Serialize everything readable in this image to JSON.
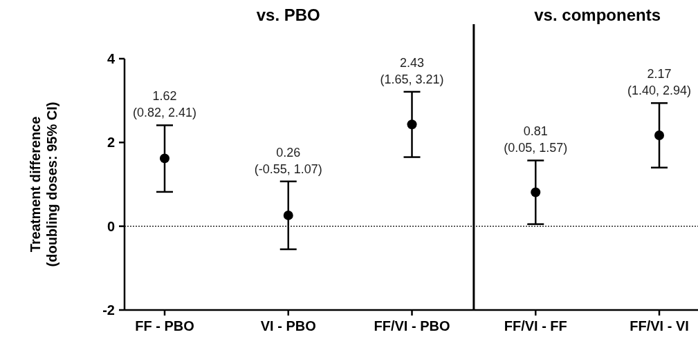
{
  "chart_data": {
    "type": "scatter",
    "ylabel": "Treatment difference\n(doubling doses: 95% CI)",
    "categories": [
      "FF - PBO",
      "VI - PBO",
      "FF/VI - PBO",
      "FF/VI - FF",
      "FF/VI - VI"
    ],
    "values": [
      1.62,
      0.26,
      2.43,
      0.81,
      2.17
    ],
    "errors": [
      [
        0.82,
        2.41
      ],
      [
        -0.55,
        1.07
      ],
      [
        1.65,
        3.21
      ],
      [
        0.05,
        1.57
      ],
      [
        1.4,
        2.94
      ]
    ],
    "value_labels": [
      "1.62\n(0.82, 2.41)",
      "0.26\n(-0.55, 1.07)",
      "2.43\n(1.65, 3.21)",
      "0.81\n(0.05, 1.57)",
      "2.17\n(1.40, 2.94)"
    ],
    "color": "#000000",
    "marker": "circle",
    "ylim": [
      -2,
      4
    ],
    "yticks": [
      -2,
      0,
      2,
      4
    ],
    "ref_lines": [
      {
        "axis": "y",
        "value": 0,
        "line_style": "dotted"
      }
    ],
    "annotations": [
      "vs. PBO",
      "vs. components"
    ],
    "grid": false
  }
}
